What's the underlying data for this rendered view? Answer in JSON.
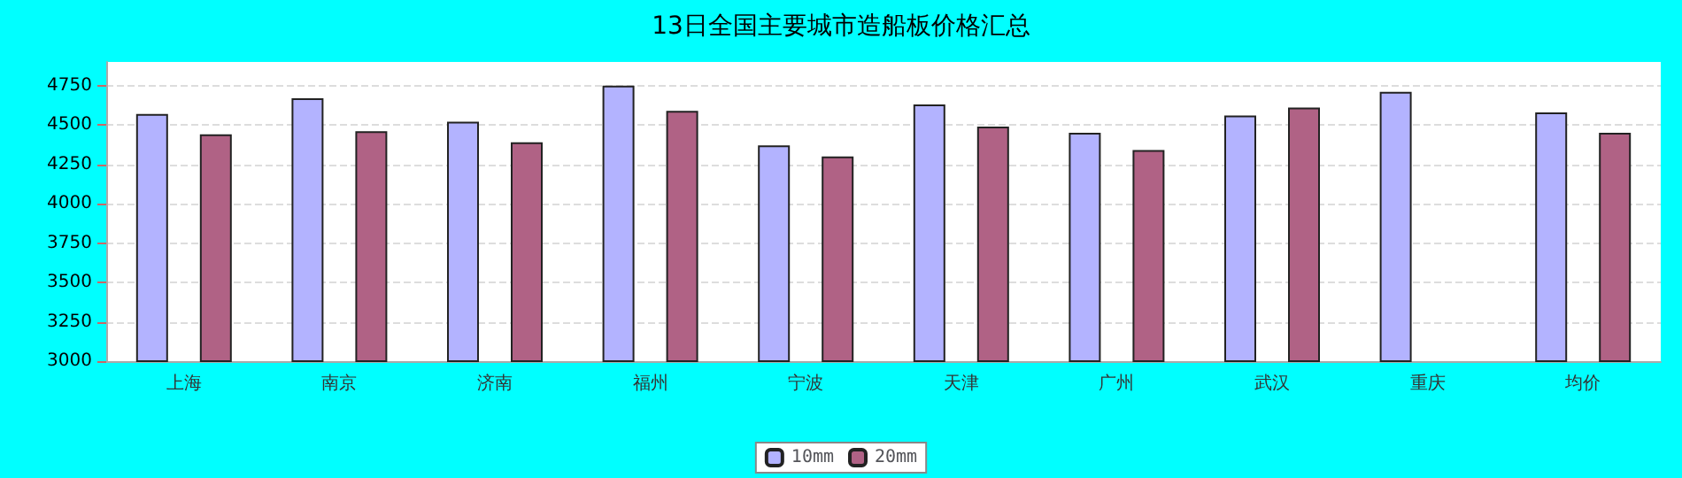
{
  "chart_data": {
    "type": "bar",
    "title": "13日全国主要城市造船板价格汇总",
    "categories": [
      "上海",
      "南京",
      "济南",
      "福州",
      "宁波",
      "天津",
      "广州",
      "武汉",
      "重庆",
      "均价"
    ],
    "series": [
      {
        "name": "10mm",
        "color": "#b3b3ff",
        "values": [
          4570,
          4670,
          4520,
          4750,
          4370,
          4630,
          4450,
          4560,
          4710,
          4580
        ]
      },
      {
        "name": "20mm",
        "color": "#b06285",
        "values": [
          4440,
          4460,
          4390,
          4590,
          4300,
          4490,
          4340,
          4610,
          null,
          4450
        ]
      }
    ],
    "ylim": [
      3000,
      4900
    ],
    "yticks": [
      3000,
      3250,
      3500,
      3750,
      4000,
      4250,
      4500,
      4750
    ],
    "grid": "y",
    "legend": "bottom"
  }
}
